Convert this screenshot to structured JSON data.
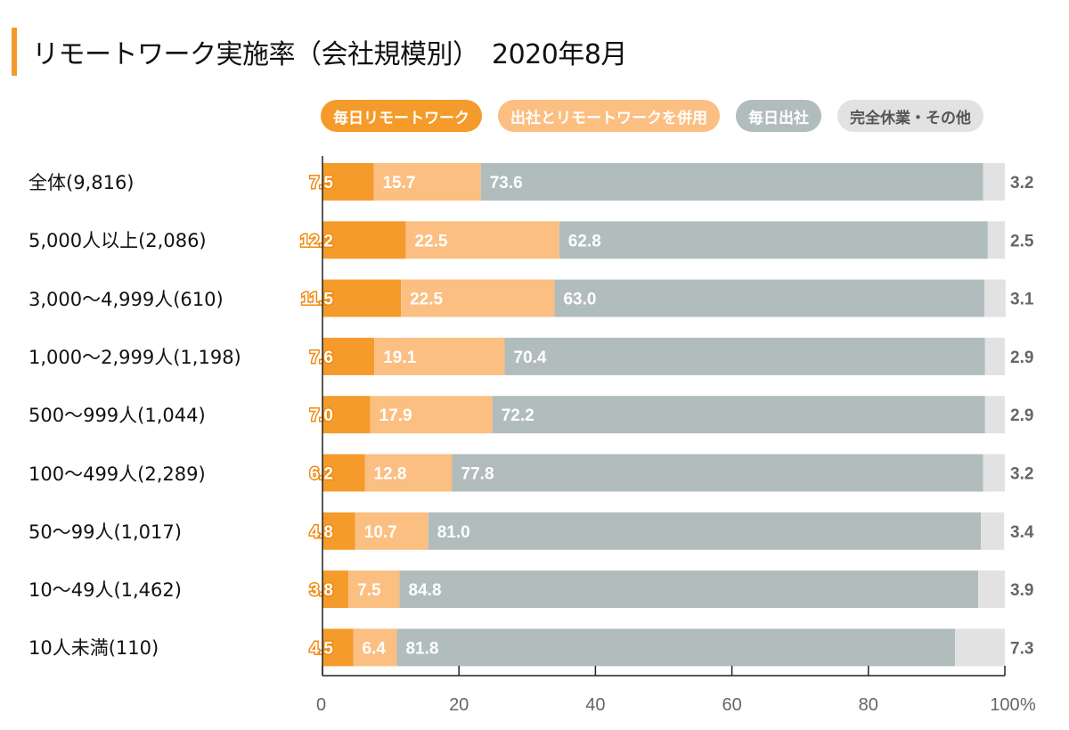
{
  "title": "リモートワーク実施率（会社規模別）　2020年8月",
  "legend": [
    {
      "label": "毎日リモートワーク",
      "color": "#f59b2b"
    },
    {
      "label": "出社とリモートワークを併用",
      "color": "#fbbf82"
    },
    {
      "label": "毎日出社",
      "color": "#b1bcbd"
    },
    {
      "label": "完全休業・その他",
      "color": "#e2e2e2"
    }
  ],
  "chart_data": {
    "type": "bar",
    "orientation": "horizontal",
    "stacked": true,
    "title": "リモートワーク実施率（会社規模別）　2020年8月",
    "xlabel": "%",
    "ylabel": "",
    "xlim": [
      0,
      100
    ],
    "x_ticks": [
      "0",
      "20",
      "40",
      "60",
      "80",
      "100"
    ],
    "x_unit": "%",
    "grid": false,
    "legend_position": "top",
    "categories": [
      "全体(9,816)",
      "5,000人以上(2,086)",
      "3,000〜4,999人(610)",
      "1,000〜2,999人(1,198)",
      "500〜999人(1,044)",
      "100〜499人(2,289)",
      "50〜99人(1,017)",
      "10〜49人(1,462)",
      "10人未満(110)"
    ],
    "series": [
      {
        "name": "毎日リモートワーク",
        "color": "#f59b2b",
        "values": [
          "7.5",
          "12.2",
          "11.5",
          "7.6",
          "7.0",
          "6.2",
          "4.8",
          "3.8",
          "4.5"
        ]
      },
      {
        "name": "出社とリモートワークを併用",
        "color": "#fbbf82",
        "values": [
          "15.7",
          "22.5",
          "22.5",
          "19.1",
          "17.9",
          "12.8",
          "10.7",
          "7.5",
          "6.4"
        ]
      },
      {
        "name": "毎日出社",
        "color": "#b1bcbd",
        "values": [
          "73.6",
          "62.8",
          "63.0",
          "70.4",
          "72.2",
          "77.8",
          "81.0",
          "84.8",
          "81.8"
        ]
      },
      {
        "name": "完全休業・その他",
        "color": "#e2e2e2",
        "values": [
          "3.2",
          "2.5",
          "3.1",
          "2.9",
          "2.9",
          "3.2",
          "3.4",
          "3.9",
          "7.3"
        ]
      }
    ]
  }
}
